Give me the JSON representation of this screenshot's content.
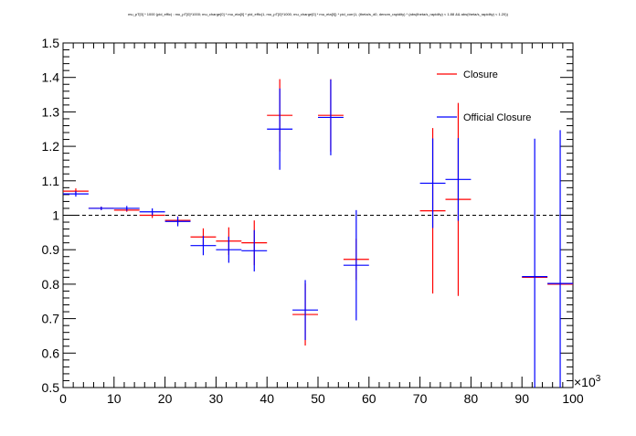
{
  "chart_data": {
    "type": "scatter",
    "title": "mu_pT[0] * 1000 (pid_effic) : mu_pT[0]*1000; mu_charge[0] * mu_eta[0] * pid_effic(1, mu_pT[0]*1000, mu_charge[0] * mu_eta[0]) * pid_corr(1, (theta/s_d0, denom_rapidity) * (abs(theta/s_rapidity) < 1.88 && abs(theta/s_rapidity) < 1.20))",
    "x_multiplier": "×10",
    "x_multiplier_exp": "3",
    "xlim": [
      0,
      100
    ],
    "ylim": [
      0.5,
      1.5
    ],
    "x_ticks": [
      "0",
      "10",
      "20",
      "30",
      "40",
      "50",
      "60",
      "70",
      "80",
      "90",
      "100"
    ],
    "y_ticks": [
      "0.5",
      "0.6",
      "0.7",
      "0.8",
      "0.9",
      "1",
      "1.1",
      "1.2",
      "1.3",
      "1.4",
      "1.5"
    ],
    "reference_line": 1.0,
    "legend_position": "top-right",
    "series": [
      {
        "name": "Closure",
        "color": "#ff0000",
        "points": [
          {
            "x": 2.5,
            "y": 1.07,
            "err": 0.008
          },
          {
            "x": 7.5,
            "y": 1.02,
            "err": 0.005
          },
          {
            "x": 12.5,
            "y": 1.015,
            "err": 0.005
          },
          {
            "x": 17.5,
            "y": 1.0,
            "err": 0.008
          },
          {
            "x": 22.5,
            "y": 0.985,
            "err": 0.012
          },
          {
            "x": 27.5,
            "y": 0.937,
            "err": 0.025
          },
          {
            "x": 32.5,
            "y": 0.925,
            "err": 0.04
          },
          {
            "x": 37.5,
            "y": 0.92,
            "err": 0.065
          },
          {
            "x": 42.5,
            "y": 1.29,
            "err": 0.105
          },
          {
            "x": 47.5,
            "y": 0.712,
            "err": 0.09
          },
          {
            "x": 52.5,
            "y": 1.29,
            "err": 0.105
          },
          {
            "x": 57.5,
            "y": 0.872,
            "err": 0.06
          },
          {
            "x": 72.5,
            "y": 1.013,
            "err": 0.24
          },
          {
            "x": 77.5,
            "y": 1.046,
            "err": 0.28
          },
          {
            "x": 92.5,
            "y": 0.82,
            "err": 0.0
          },
          {
            "x": 97.5,
            "y": 0.8,
            "err": 0.0
          }
        ]
      },
      {
        "name": "Official Closure",
        "color": "#0000ff",
        "points": [
          {
            "x": 2.5,
            "y": 1.062,
            "err": 0.008
          },
          {
            "x": 7.5,
            "y": 1.02,
            "err": 0.005
          },
          {
            "x": 12.5,
            "y": 1.02,
            "err": 0.007
          },
          {
            "x": 17.5,
            "y": 1.01,
            "err": 0.01
          },
          {
            "x": 22.5,
            "y": 0.982,
            "err": 0.014
          },
          {
            "x": 27.5,
            "y": 0.912,
            "err": 0.028
          },
          {
            "x": 32.5,
            "y": 0.9,
            "err": 0.038
          },
          {
            "x": 37.5,
            "y": 0.897,
            "err": 0.06
          },
          {
            "x": 42.5,
            "y": 1.25,
            "err": 0.118
          },
          {
            "x": 47.5,
            "y": 0.725,
            "err": 0.087
          },
          {
            "x": 52.5,
            "y": 1.284,
            "err": 0.11
          },
          {
            "x": 57.5,
            "y": 0.855,
            "err": 0.16
          },
          {
            "x": 72.5,
            "y": 1.093,
            "err": 0.13
          },
          {
            "x": 77.5,
            "y": 1.104,
            "err": 0.12
          },
          {
            "x": 92.5,
            "y": 0.822,
            "err": 0.4
          },
          {
            "x": 97.5,
            "y": 0.802,
            "err": 0.445
          }
        ]
      }
    ]
  }
}
